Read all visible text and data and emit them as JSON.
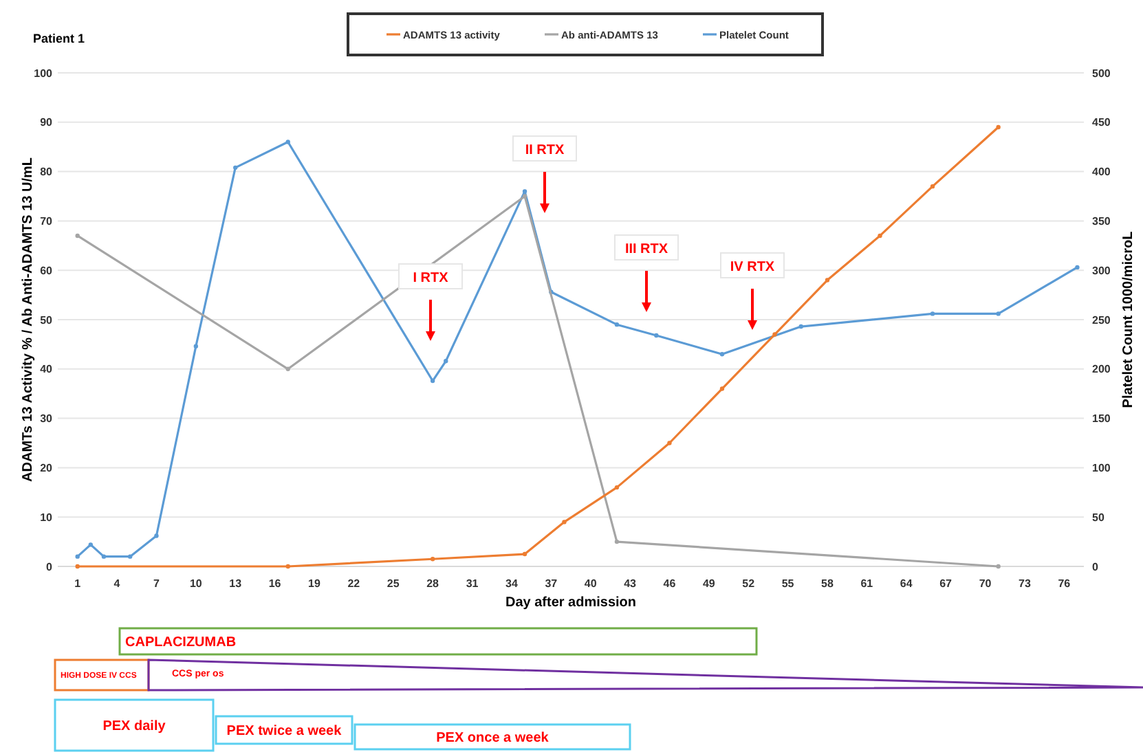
{
  "chart_data": {
    "type": "line",
    "title": "Patient 1",
    "xlabel": "Day after admission",
    "ylabel": "ADAMTs 13 Activity % / Ab Anti-ADAMTS 13 U/mL",
    "y2label": "Platelet Count 1000/microL",
    "xlim": [
      -0.5,
      77.5
    ],
    "xticks": [
      1,
      4,
      7,
      10,
      13,
      16,
      19,
      22,
      25,
      28,
      31,
      34,
      37,
      40,
      43,
      46,
      49,
      52,
      55,
      58,
      61,
      64,
      67,
      70,
      73,
      76
    ],
    "ylim": [
      0,
      100
    ],
    "yticks": [
      0,
      10,
      20,
      30,
      40,
      50,
      60,
      70,
      80,
      90,
      100
    ],
    "y2lim": [
      0,
      500
    ],
    "y2ticks": [
      0,
      50,
      100,
      150,
      200,
      250,
      300,
      350,
      400,
      450,
      500
    ],
    "grid": "y",
    "legend": "top",
    "marker": "circle",
    "line_style": "solid",
    "series": [
      {
        "name": "ADAMTS 13 activity",
        "color": "#ed7d31",
        "x": [
          1,
          17,
          28,
          35,
          38,
          42,
          46,
          50,
          54,
          58,
          62,
          66,
          71
        ],
        "values": [
          0,
          0,
          1.5,
          2.5,
          9,
          16,
          25,
          36,
          47,
          58,
          67,
          77,
          89
        ]
      },
      {
        "name": "Ab anti-ADAMTS 13",
        "color": "#a5a5a5",
        "x": [
          1,
          17,
          35,
          42,
          71
        ],
        "values": [
          67,
          40,
          75,
          5,
          0
        ]
      },
      {
        "name": "Platelet Count",
        "color": "#5b9bd5",
        "axis": "y2",
        "x": [
          1,
          2,
          3,
          5,
          7,
          10,
          13,
          17,
          28,
          29,
          35,
          37,
          42,
          45,
          50,
          56,
          66,
          71,
          77
        ],
        "values": [
          10,
          22,
          10,
          10,
          31,
          223,
          404,
          430,
          188,
          208,
          380,
          278,
          245,
          234,
          215,
          243,
          256,
          256,
          303
        ]
      }
    ],
    "annotations": [
      "I RTX",
      "II RTX",
      "III RTX",
      "IV RTX",
      "CAPLACIZUMAB",
      "HIGH DOSE IV CCS",
      "CCS per os",
      "PEX daily",
      "PEX twice a week",
      "PEX  once a week"
    ]
  }
}
